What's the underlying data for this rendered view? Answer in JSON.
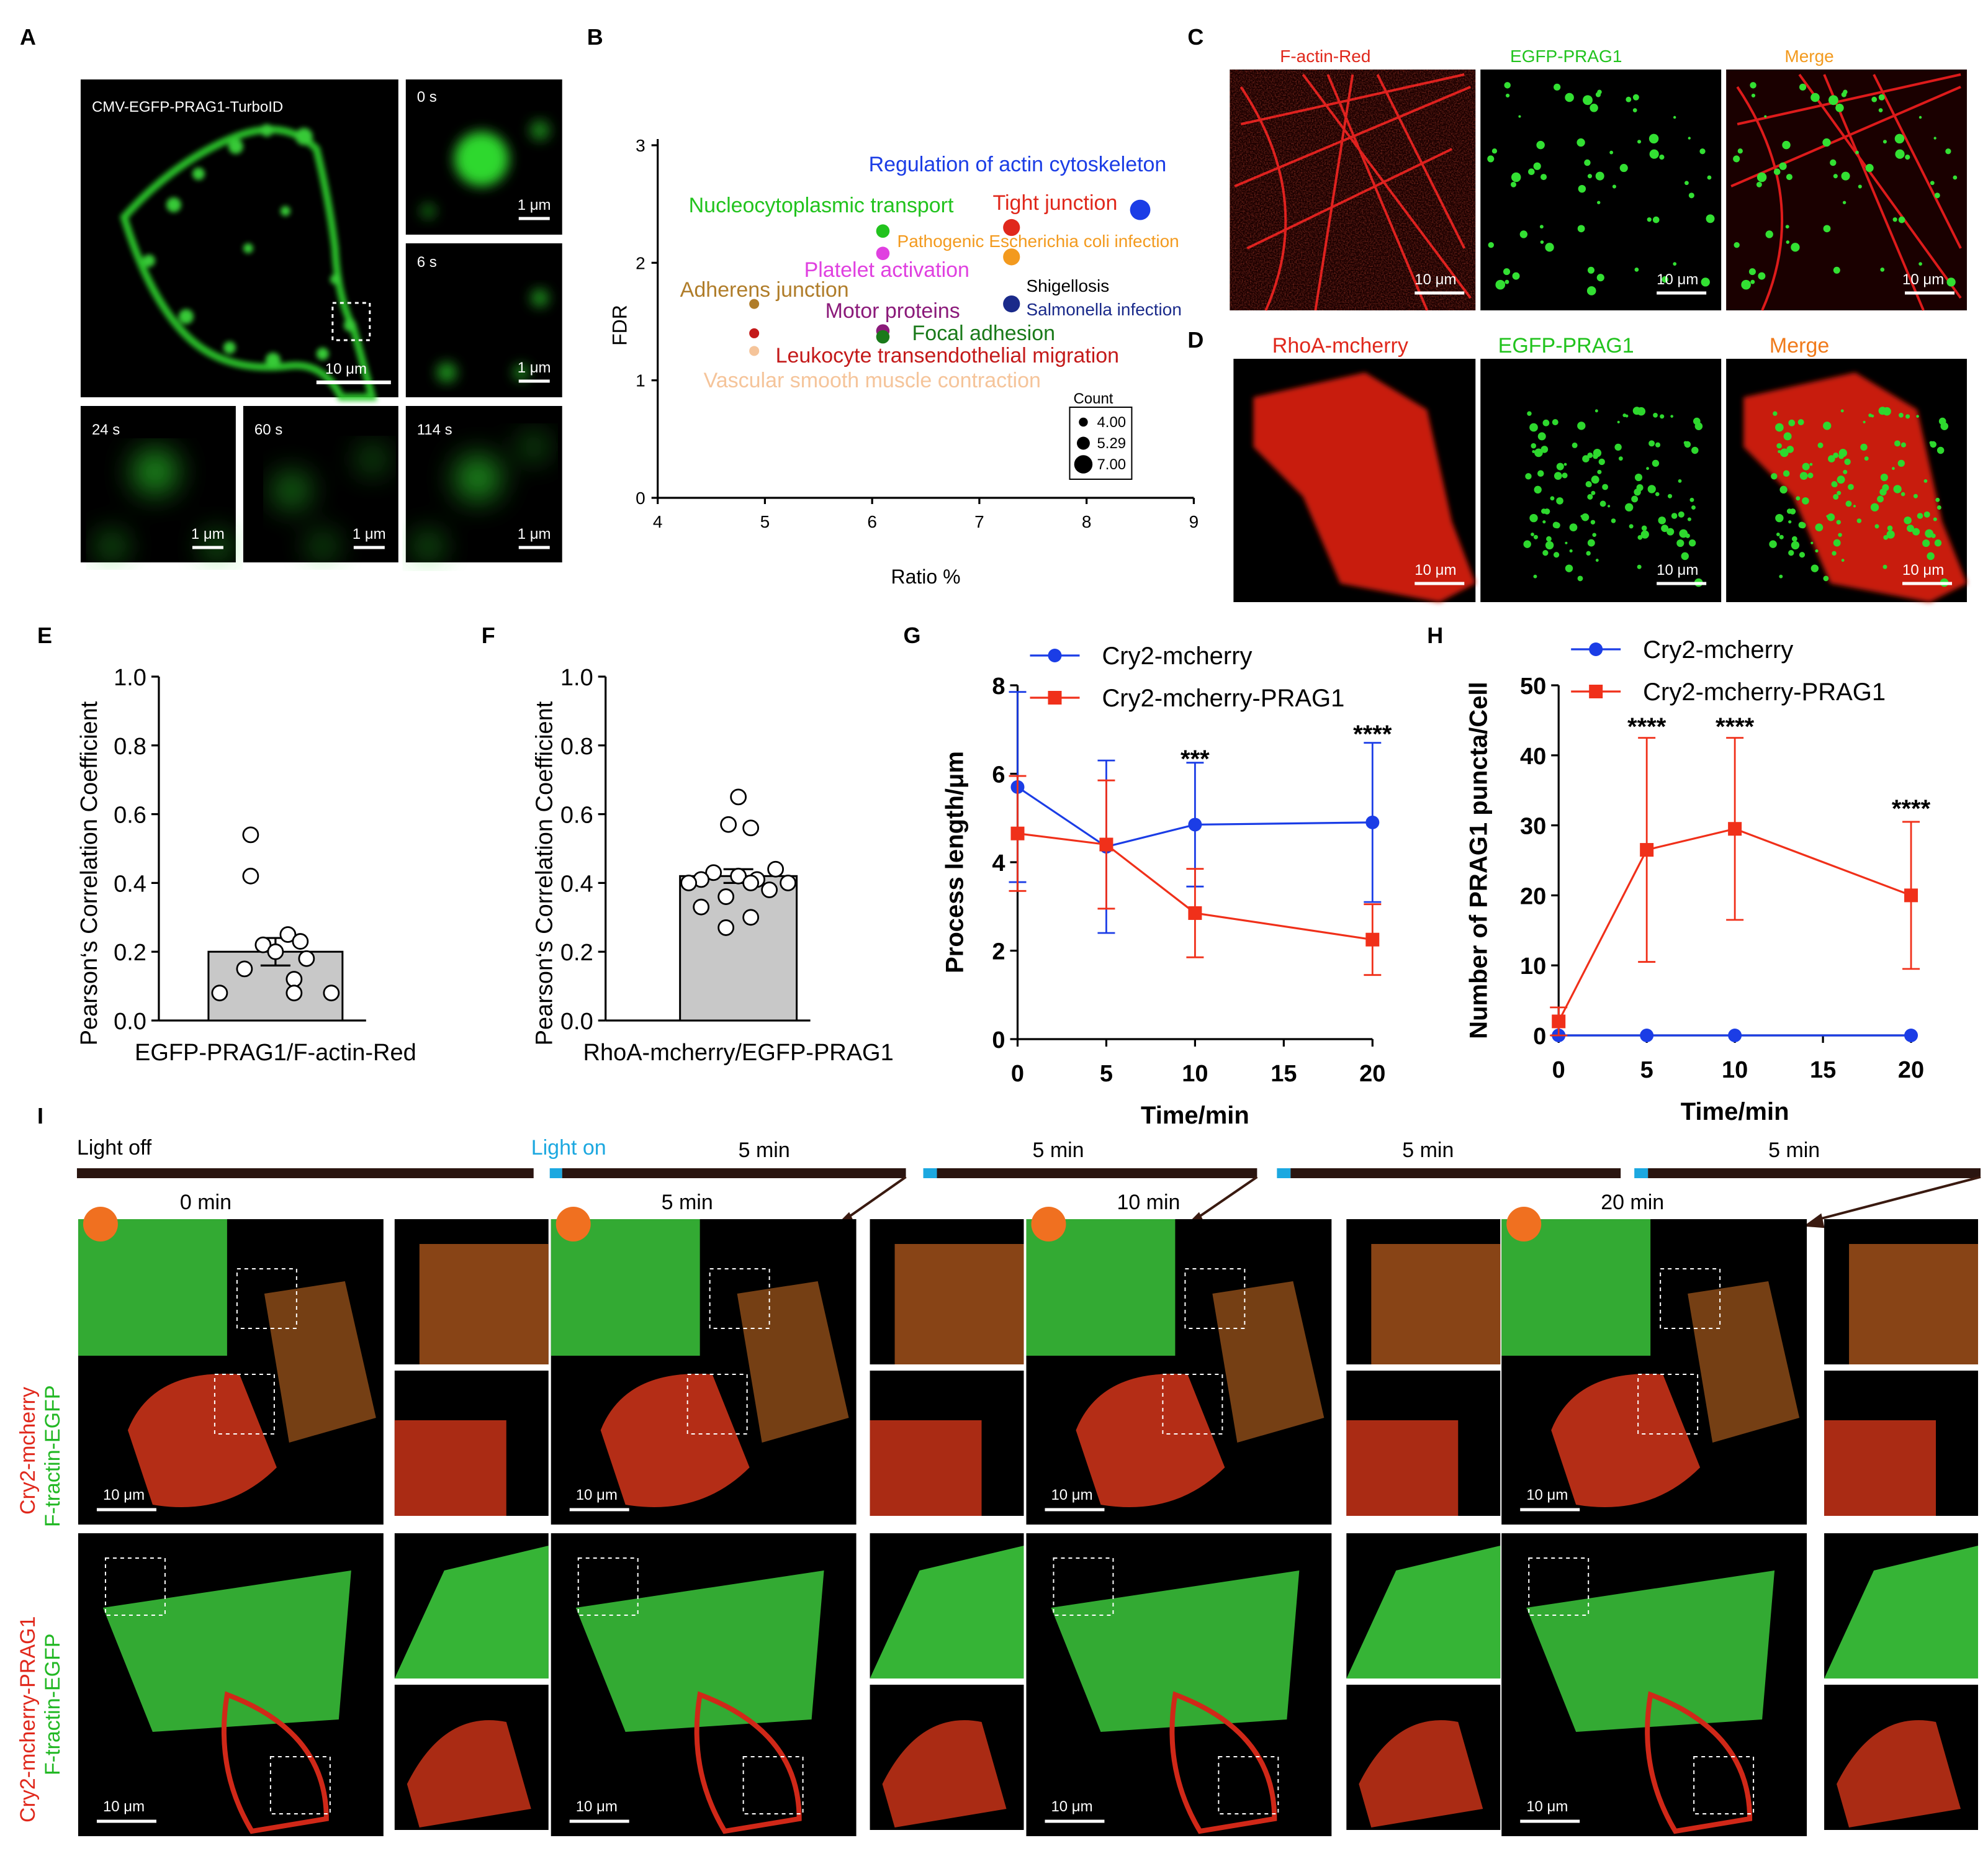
{
  "panels": {
    "A": {
      "letter": "A",
      "main_label": "CMV-EGFP-PRAG1-TurboID",
      "main_scale": "10 μm",
      "insets": [
        {
          "time": "0 s",
          "scale": "1 μm"
        },
        {
          "time": "6 s",
          "scale": "1 μm"
        },
        {
          "time": "24 s",
          "scale": "1 μm"
        },
        {
          "time": "60 s",
          "scale": "1 μm"
        },
        {
          "time": "114 s",
          "scale": "1 μm"
        }
      ]
    },
    "B": {
      "letter": "B"
    },
    "C": {
      "letter": "C",
      "titles": [
        "F-actin-Red",
        "EGFP-PRAG1",
        "Merge"
      ],
      "scale": "10 μm"
    },
    "D": {
      "letter": "D",
      "titles": [
        "RhoA-mcherry",
        "EGFP-PRAG1",
        "Merge"
      ],
      "scale": "10 μm"
    },
    "E": {
      "letter": "E"
    },
    "F": {
      "letter": "F"
    },
    "G": {
      "letter": "G"
    },
    "H": {
      "letter": "H"
    },
    "I": {
      "letter": "I",
      "light_off": "Light off",
      "light_on": "Light on",
      "durations": [
        "5 min",
        "5 min",
        "5 min",
        "5 min"
      ],
      "timepoints": [
        "0 min",
        "5 min",
        "10 min",
        "20 min"
      ],
      "row1_label_red": "Cry2-mcherry",
      "row1_label_green": "F-tractin-EGFP",
      "row2_label_red": "Cry2-mcherry-PRAG1",
      "row2_label_green": "F-tractin-EGFP",
      "scale": "10 μm"
    }
  },
  "colors": {
    "green": "#22d82a",
    "red": "#e0281c",
    "blue": "#1b3de6",
    "orangeRed": "#f0301a",
    "legendBlue": "#1b3de6",
    "legendRed": "#f0301a"
  },
  "chart_data": [
    {
      "panel": "B",
      "type": "scatter",
      "xlabel": "Ratio %",
      "ylabel": "FDR",
      "xlim": [
        4,
        9
      ],
      "ylim": [
        0,
        3
      ],
      "xticks": [
        4,
        5,
        6,
        7,
        8,
        9
      ],
      "yticks": [
        0,
        1,
        2,
        3
      ],
      "legend_title": "Count",
      "legend_sizes": [
        "4.00",
        "5.29",
        "7.00"
      ],
      "points": [
        {
          "name": "Regulation of actin cytoskeleton",
          "x": 8.5,
          "y": 2.45,
          "count": 7,
          "color": "#1b3de6"
        },
        {
          "name": "Tight junction",
          "x": 7.3,
          "y": 2.3,
          "count": 6,
          "color": "#e0281c"
        },
        {
          "name": "Pathogenic Escherichia coli infection",
          "x": 7.3,
          "y": 2.05,
          "count": 6,
          "color": "#f39a1e"
        },
        {
          "name": "Shigellosis",
          "x": 7.3,
          "y": 1.65,
          "count": 6,
          "color": "#000000"
        },
        {
          "name": "Salmonella infection",
          "x": 7.3,
          "y": 1.65,
          "count": 6,
          "color": "#1a2a8a"
        },
        {
          "name": "Nucleocytoplasmic transport",
          "x": 6.1,
          "y": 2.27,
          "count": 5,
          "color": "#22c31e"
        },
        {
          "name": "Platelet activation",
          "x": 6.1,
          "y": 2.08,
          "count": 5,
          "color": "#e040e0"
        },
        {
          "name": "Motor proteins",
          "x": 6.1,
          "y": 1.42,
          "count": 5,
          "color": "#8b1a7a"
        },
        {
          "name": "Focal adhesion",
          "x": 6.1,
          "y": 1.37,
          "count": 5,
          "color": "#1a7a1a"
        },
        {
          "name": "Adherens junction",
          "x": 4.9,
          "y": 1.65,
          "count": 4,
          "color": "#b07d2a"
        },
        {
          "name": "Leukocyte transendothelial migration",
          "x": 4.9,
          "y": 1.4,
          "count": 4,
          "color": "#c41a1a"
        },
        {
          "name": "Vascular smooth muscle contraction",
          "x": 4.9,
          "y": 1.25,
          "count": 4,
          "color": "#f5c49a"
        }
      ]
    },
    {
      "panel": "E",
      "type": "bar",
      "categories": [
        "EGFP-PRAG1/F-actin-Red"
      ],
      "values": [
        0.2
      ],
      "sem": 0.04,
      "points": [
        0.54,
        0.42,
        0.25,
        0.23,
        0.22,
        0.2,
        0.18,
        0.15,
        0.12,
        0.08,
        0.08,
        0.08
      ],
      "ylabel": "Pearson‘s Correlation  Coefficient",
      "ylim": [
        0,
        1
      ],
      "yticks": [
        "0.0",
        "0.2",
        "0.4",
        "0.6",
        "0.8",
        "1.0"
      ]
    },
    {
      "panel": "F",
      "type": "bar",
      "categories": [
        "RhoA-mcherry/EGFP-PRAG1"
      ],
      "values": [
        0.42
      ],
      "sem": 0.02,
      "points": [
        0.65,
        0.57,
        0.56,
        0.44,
        0.43,
        0.42,
        0.41,
        0.41,
        0.4,
        0.4,
        0.4,
        0.38,
        0.36,
        0.33,
        0.3,
        0.27
      ],
      "ylabel": "Pearson‘s Correlation  Coefficient",
      "ylim": [
        0,
        1
      ],
      "yticks": [
        "0.0",
        "0.2",
        "0.4",
        "0.6",
        "0.8",
        "1.0"
      ]
    },
    {
      "panel": "G",
      "type": "line",
      "xlabel": "Time/min",
      "ylabel": "Process length/μm",
      "xlim": [
        0,
        20
      ],
      "ylim": [
        0,
        8
      ],
      "xticks": [
        0,
        5,
        10,
        15,
        20
      ],
      "yticks": [
        0,
        2,
        4,
        6,
        8
      ],
      "x": [
        0,
        5,
        10,
        20
      ],
      "annotations": [
        {
          "x": 10,
          "text": "***"
        },
        {
          "x": 20,
          "text": "****"
        }
      ],
      "series": [
        {
          "name": "Cry2-mcherry",
          "values": [
            5.7,
            4.35,
            4.85,
            4.9
          ],
          "err": [
            2.15,
            1.95,
            1.4,
            1.8
          ],
          "color": "#1b3de6",
          "marker": "circle"
        },
        {
          "name": "Cry2-mcherry-PRAG1",
          "values": [
            4.65,
            4.4,
            2.85,
            2.25
          ],
          "err": [
            1.3,
            1.45,
            1.0,
            0.8
          ],
          "color": "#f0301a",
          "marker": "square"
        }
      ]
    },
    {
      "panel": "H",
      "type": "line",
      "xlabel": "Time/min",
      "ylabel": "Number of PRAG1 puncta/Cell",
      "xlim": [
        0,
        20
      ],
      "ylim": [
        0,
        50
      ],
      "xticks": [
        0,
        5,
        10,
        15,
        20
      ],
      "yticks": [
        0,
        10,
        20,
        30,
        40,
        50
      ],
      "x": [
        0,
        5,
        10,
        20
      ],
      "annotations": [
        {
          "x": 5,
          "text": "****"
        },
        {
          "x": 10,
          "text": "****"
        },
        {
          "x": 20,
          "text": "****"
        }
      ],
      "series": [
        {
          "name": "Cry2-mcherry",
          "values": [
            0,
            0,
            0,
            0
          ],
          "err": [
            0,
            0,
            0,
            0
          ],
          "color": "#1b3de6",
          "marker": "circle"
        },
        {
          "name": "Cry2-mcherry-PRAG1",
          "values": [
            2,
            26.5,
            29.5,
            20
          ],
          "err": [
            2,
            16,
            13,
            10.5
          ],
          "color": "#f0301a",
          "marker": "square"
        }
      ]
    }
  ]
}
